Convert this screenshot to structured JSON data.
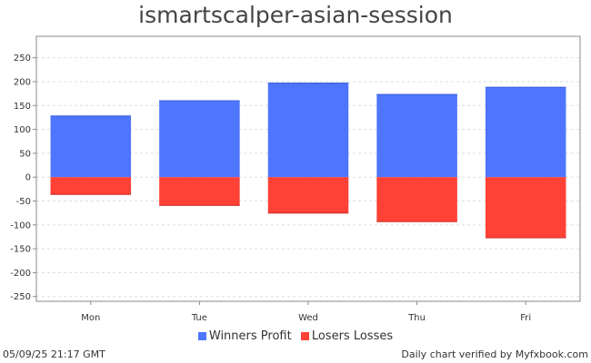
{
  "chart_data": {
    "type": "bar",
    "title": "ismartscalper-asian-session",
    "categories": [
      "Mon",
      "Tue",
      "Wed",
      "Thu",
      "Fri"
    ],
    "series": [
      {
        "name": "Winners Profit",
        "color": "#4f75ff",
        "values": [
          129,
          161,
          198,
          174,
          189
        ]
      },
      {
        "name": "Losers Losses",
        "color": "#ff4136",
        "values": [
          -37,
          -60,
          -76,
          -94,
          -128
        ]
      }
    ],
    "yticks": [
      250,
      200,
      150,
      100,
      50,
      0,
      -50,
      -100,
      -150,
      -200,
      -250
    ],
    "ytick_labels": [
      "250",
      "200",
      "150",
      "100",
      "50",
      "0",
      "-50",
      "-100",
      "-150",
      "-200",
      "-250"
    ],
    "ylim": [
      -260,
      295
    ],
    "grid": true,
    "legend_position": "bottom"
  },
  "footer": {
    "timestamp": "05/09/25 21:17 GMT",
    "verified": "Daily chart verified by Myfxbook.com"
  }
}
